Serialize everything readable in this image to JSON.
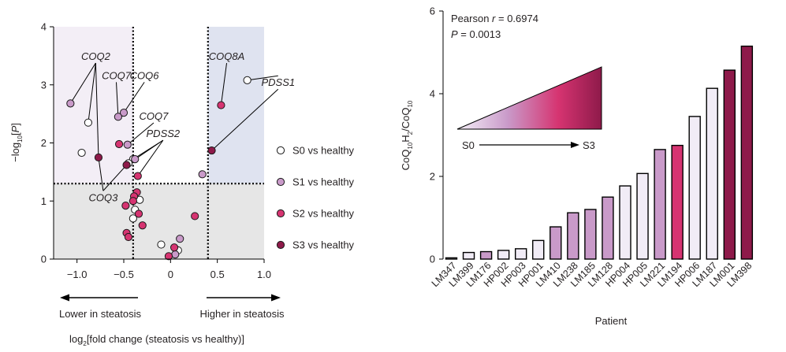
{
  "chart_data": [
    {
      "type": "scatter",
      "xlabel": {
        "pre": "log",
        "sub": "2",
        "post": "[fold change (steatosis vs healthy)]"
      },
      "ylabel": {
        "pre": "−log",
        "sub": "10",
        "post": "[",
        "italic": "P",
        "end": "]"
      },
      "xlim": [
        -1.25,
        1.0
      ],
      "ylim": [
        0,
        4
      ],
      "xticks": [
        -1.0,
        -0.5,
        0,
        0.5,
        1.0
      ],
      "xtick_labels": [
        "−1.0",
        "−0.5",
        "0",
        "0.5",
        "1.0"
      ],
      "yticks": [
        0,
        1,
        2,
        3,
        4
      ],
      "ytick_labels": [
        "0",
        "1",
        "2",
        "3",
        "4"
      ],
      "thresholds": {
        "x": [
          -0.4,
          0.4
        ],
        "y": 1.3
      },
      "region_colors": {
        "left": "#f3eef6",
        "right": "#dfe3f0",
        "bottom": "#e6e6e6"
      },
      "arrows": {
        "left": "Lower in steatosis",
        "right": "Higher in steatosis"
      },
      "series": [
        {
          "name": "S0 vs healthy",
          "color": "#ffffff",
          "points": [
            [
              -0.88,
              2.35
            ],
            [
              -0.95,
              1.83
            ],
            [
              -0.4,
              1.72
            ],
            [
              -0.45,
              1.65
            ],
            [
              -0.33,
              1.02
            ],
            [
              -0.38,
              0.85
            ],
            [
              -0.4,
              0.7
            ],
            [
              -0.1,
              0.25
            ],
            [
              0.08,
              0.15
            ],
            [
              0.82,
              3.08
            ]
          ]
        },
        {
          "name": "S1 vs healthy",
          "color": "#c99ac9",
          "points": [
            [
              -1.07,
              2.68
            ],
            [
              -0.5,
              2.52
            ],
            [
              -0.56,
              2.45
            ],
            [
              -0.46,
              1.97
            ],
            [
              -0.38,
              1.72
            ],
            [
              0.34,
              1.46
            ],
            [
              0.1,
              0.35
            ],
            [
              0.05,
              0.08
            ]
          ]
        },
        {
          "name": "S2 vs healthy",
          "color": "#d63471",
          "points": [
            [
              -0.55,
              1.98
            ],
            [
              -0.35,
              1.43
            ],
            [
              -0.36,
              1.15
            ],
            [
              -0.39,
              1.08
            ],
            [
              -0.4,
              1.0
            ],
            [
              -0.48,
              0.92
            ],
            [
              -0.34,
              0.78
            ],
            [
              -0.3,
              0.58
            ],
            [
              -0.47,
              0.45
            ],
            [
              -0.45,
              0.38
            ],
            [
              0.26,
              0.74
            ],
            [
              0.04,
              0.2
            ],
            [
              -0.02,
              0.05
            ],
            [
              0.54,
              2.65
            ]
          ]
        },
        {
          "name": "S3 vs healthy",
          "color": "#8e1a4a",
          "points": [
            [
              -0.77,
              1.75
            ],
            [
              -0.47,
              1.62
            ],
            [
              0.44,
              1.87
            ]
          ]
        }
      ],
      "annotations": [
        {
          "label": "COQ2",
          "x": -0.8,
          "y": 3.43,
          "targets": [
            [
              -1.07,
              2.68
            ],
            [
              -0.88,
              2.35
            ],
            [
              -0.77,
              1.75
            ]
          ]
        },
        {
          "label": "COQ7",
          "x": -0.58,
          "y": 3.1,
          "targets": [
            [
              -0.56,
              2.45
            ]
          ]
        },
        {
          "label": "COQ6",
          "x": -0.28,
          "y": 3.1,
          "targets": [
            [
              -0.5,
              2.52
            ]
          ]
        },
        {
          "label": "COQ7",
          "x": -0.18,
          "y": 2.4,
          "targets": [
            [
              -0.46,
              1.97
            ]
          ]
        },
        {
          "label": "PDSS2",
          "x": -0.08,
          "y": 2.1,
          "targets": [
            [
              -0.4,
              1.72
            ],
            [
              -0.47,
              1.62
            ],
            [
              -0.35,
              1.43
            ]
          ]
        },
        {
          "label": "COQ8A",
          "x": 0.6,
          "y": 3.43,
          "targets": [
            [
              0.54,
              2.65
            ]
          ]
        },
        {
          "label": "PDSS1",
          "x": 1.15,
          "y": 2.98,
          "targets": [
            [
              0.82,
              3.08
            ],
            [
              0.44,
              1.87
            ]
          ]
        },
        {
          "label": "COQ3",
          "x": -0.72,
          "y": 1.0,
          "targets": [
            [
              -0.77,
              1.75
            ],
            [
              -0.47,
              1.62
            ]
          ]
        }
      ]
    },
    {
      "type": "bar",
      "categories": [
        "LM347",
        "LM399",
        "LM176",
        "HP002",
        "HP003",
        "HP001",
        "LM410",
        "LM238",
        "LM185",
        "LM128",
        "HP004",
        "HP005",
        "LM221",
        "LM194",
        "HP006",
        "LM187",
        "LM001",
        "LM398"
      ],
      "values": [
        0.03,
        0.16,
        0.18,
        0.21,
        0.25,
        0.45,
        0.78,
        1.12,
        1.2,
        1.5,
        1.77,
        2.07,
        2.65,
        2.75,
        3.45,
        4.13,
        4.57,
        5.15
      ],
      "colors": [
        "#f1ecf6",
        "#f1ecf6",
        "#c99ac9",
        "#f1ecf6",
        "#f1ecf6",
        "#f1ecf6",
        "#c99ac9",
        "#c99ac9",
        "#c99ac9",
        "#c99ac9",
        "#f1ecf6",
        "#f1ecf6",
        "#c99ac9",
        "#d63471",
        "#f1ecf6",
        "#f1ecf6",
        "#8e1a4a",
        "#8e1a4a"
      ],
      "xlabel": "Patient",
      "ylabel": {
        "pre": "CoQ",
        "sub1": "10",
        "mid": "H",
        "sub2": "2",
        "slash": "/CoQ",
        "sub3": "10"
      },
      "ylim": [
        0,
        6
      ],
      "yticks": [
        0,
        2,
        4,
        6
      ],
      "ytick_labels": [
        "0",
        "2",
        "4",
        "6"
      ],
      "stats": {
        "pearson_prefix": "Pearson ",
        "pearson_var": "r",
        "pearson_value": " = 0.6974",
        "p_var": "P",
        "p_value": " = 0.0013"
      },
      "gradient": {
        "start_label": "S0",
        "end_label": "S3",
        "stops": [
          "#f5f0f8",
          "#c99ac9",
          "#d63471",
          "#8e1a4a"
        ]
      }
    }
  ]
}
